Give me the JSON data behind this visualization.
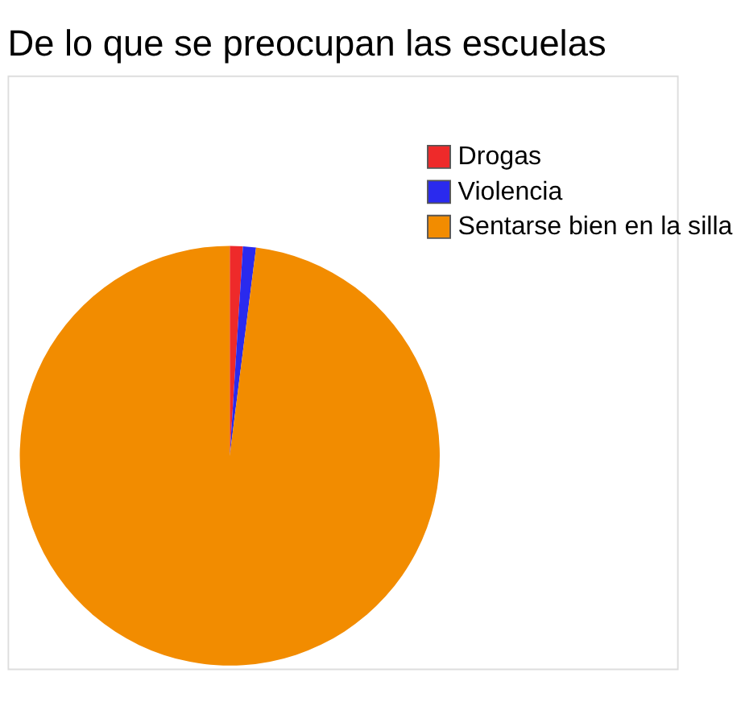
{
  "chart_data": {
    "type": "pie",
    "title": "De lo que se preocupan las escuelas",
    "categories": [
      "Drogas",
      "Violencia",
      "Sentarse bien en la silla"
    ],
    "values": [
      1,
      1,
      98
    ],
    "colors": [
      "#ee2a2a",
      "#2a2aee",
      "#f28c00"
    ],
    "legend": "top right"
  }
}
